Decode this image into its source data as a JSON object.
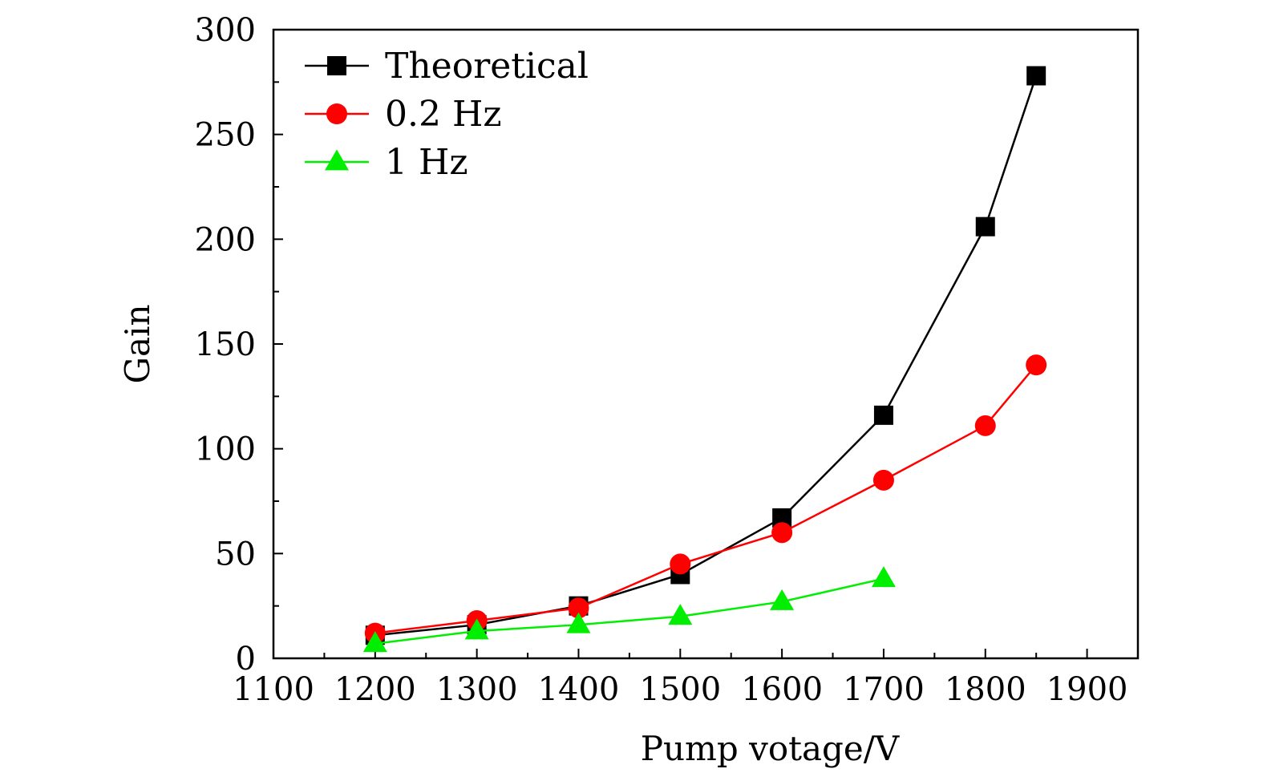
{
  "chart_data": {
    "type": "line",
    "title": "",
    "xlabel": "Pump votage/V",
    "ylabel": "Gain",
    "xlim": [
      1100,
      1950
    ],
    "ylim": [
      0,
      300
    ],
    "xticks": [
      1100,
      1200,
      1300,
      1400,
      1500,
      1600,
      1700,
      1800,
      1900
    ],
    "yticks": [
      0,
      50,
      100,
      150,
      200,
      250,
      300
    ],
    "x_minor_step": 50,
    "y_minor_step": 25,
    "grid": false,
    "legend_position": "top-left",
    "series": [
      {
        "name": "Theoretical",
        "marker": "square",
        "color": "#000000",
        "x": [
          1200,
          1300,
          1400,
          1500,
          1600,
          1700,
          1800,
          1850
        ],
        "values": [
          11,
          16,
          25,
          40,
          67,
          116,
          206,
          278
        ]
      },
      {
        "name": "0.2 Hz",
        "marker": "circle",
        "color": "#ff0000",
        "x": [
          1200,
          1300,
          1400,
          1500,
          1600,
          1700,
          1800,
          1850
        ],
        "values": [
          12,
          18,
          24,
          45,
          60,
          85,
          111,
          140
        ]
      },
      {
        "name": "1 Hz",
        "marker": "triangle",
        "color": "#00ee00",
        "x": [
          1200,
          1300,
          1400,
          1500,
          1600,
          1700
        ],
        "values": [
          7,
          13,
          16,
          20,
          27,
          38
        ]
      }
    ]
  }
}
